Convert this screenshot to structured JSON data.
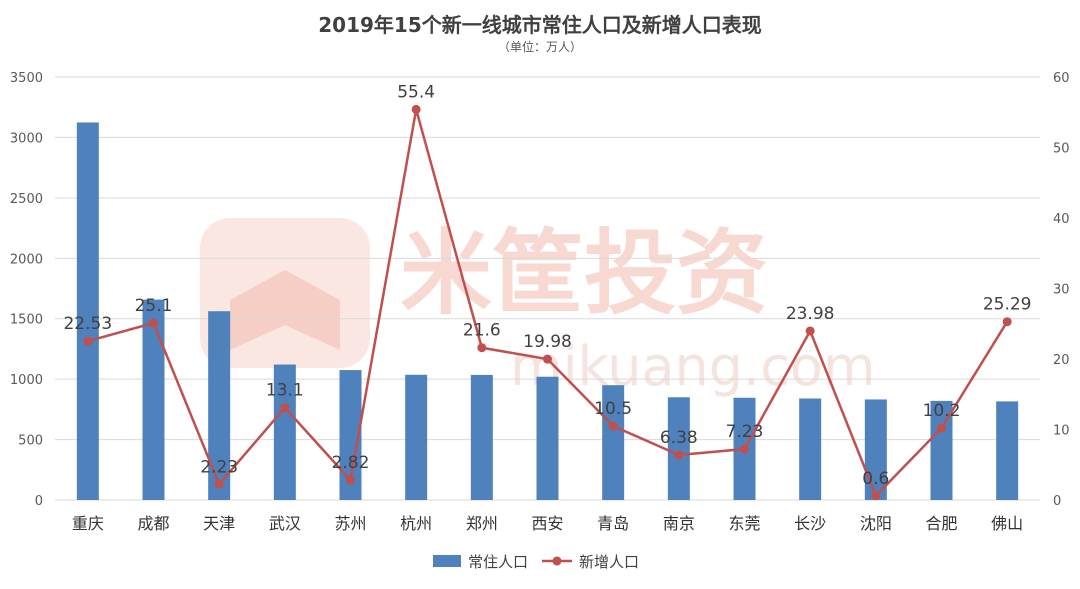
{
  "chart_data": {
    "type": "bar+line",
    "title": "2019年15个新一线城市常住人口及新增人口表现",
    "subtitle": "（单位：万人）",
    "categories": [
      "重庆",
      "成都",
      "天津",
      "武汉",
      "苏州",
      "杭州",
      "郑州",
      "西安",
      "青岛",
      "南京",
      "东莞",
      "长沙",
      "沈阳",
      "合肥",
      "佛山"
    ],
    "series": [
      {
        "name": "常住人口",
        "type": "bar",
        "axis": "left",
        "color": "#4f81bd",
        "values": [
          3124,
          1658,
          1562,
          1121,
          1075,
          1036,
          1035,
          1020,
          950,
          850,
          846,
          840,
          832,
          820,
          816
        ]
      },
      {
        "name": "新增人口",
        "type": "line",
        "axis": "right",
        "color": "#c0504d",
        "values": [
          22.53,
          25.1,
          2.23,
          13.1,
          2.82,
          55.4,
          21.6,
          19.98,
          10.5,
          6.38,
          7.23,
          23.98,
          0.6,
          10.2,
          25.29
        ],
        "labels": [
          "22.53",
          "25.1",
          "2.23",
          "13.1",
          "2.82",
          "55.4",
          "21.6",
          "19.98",
          "10.5",
          "6.38",
          "7.23",
          "23.98",
          "0.6",
          "10.2",
          "25.29"
        ]
      }
    ],
    "y_left": {
      "min": 0,
      "max": 3500,
      "ticks": [
        "0",
        "500",
        "1000",
        "1500",
        "2000",
        "2500",
        "3000",
        "3500"
      ]
    },
    "y_right": {
      "min": 0,
      "max": 60,
      "ticks": [
        "0",
        "10",
        "20",
        "30",
        "40",
        "50",
        "60"
      ]
    },
    "grid": true,
    "legend": "bottom",
    "watermark": {
      "brand": "米筐投资",
      "url": "mikuang.com"
    }
  }
}
